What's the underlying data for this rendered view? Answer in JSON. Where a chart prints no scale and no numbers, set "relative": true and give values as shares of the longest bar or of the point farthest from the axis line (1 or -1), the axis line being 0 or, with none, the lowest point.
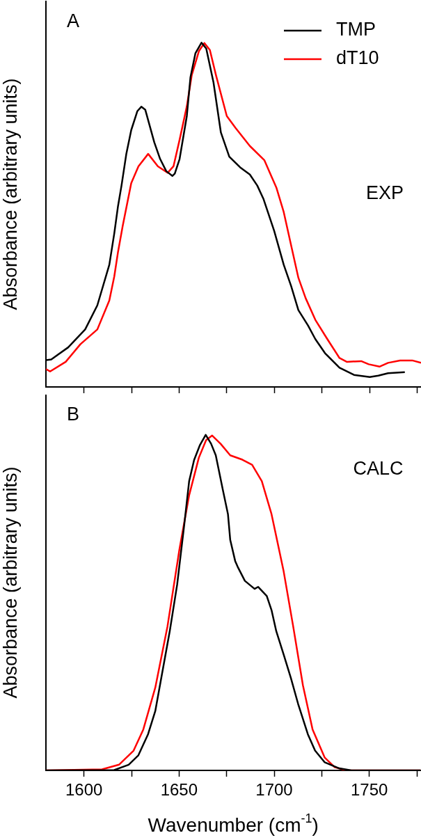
{
  "chart_data": [
    {
      "type": "line",
      "relative": true,
      "ylabel": "Absorbance (arbitrary units)",
      "xlim": [
        1580,
        1777
      ],
      "xticks": [
        1600,
        {
          "value": 1625,
          "label": null
        },
        1650,
        {
          "value": 1675,
          "label": null
        },
        1700,
        {
          "value": 1725,
          "label": null
        },
        1750,
        {
          "value": 1775,
          "label": null
        }
      ],
      "tick_labels": false,
      "legend": "top right",
      "marker": "none",
      "annotations": [
        "A",
        "EXP"
      ],
      "series": [
        {
          "name": "TMP",
          "color": "#000000",
          "x": [
            1580,
            1582.8,
            1591.7,
            1600.6,
            1607,
            1613.3,
            1615.9,
            1617.8,
            1619.7,
            1622.2,
            1624.8,
            1628,
            1630.1,
            1632.2,
            1636.9,
            1640,
            1643.2,
            1646.4,
            1647.7,
            1650.2,
            1654,
            1655.9,
            1658.5,
            1661.7,
            1664.2,
            1668,
            1671.9,
            1676.3,
            1682,
            1687.1,
            1691,
            1694.2,
            1699.9,
            1704.9,
            1708.8,
            1712.6,
            1717.7,
            1721.5,
            1726.6,
            1734.2,
            1741.8,
            1750.1,
            1754.6,
            1759.7,
            1768.5
          ],
          "values": [
            0.078,
            0.08,
            0.115,
            0.167,
            0.237,
            0.355,
            0.446,
            0.523,
            0.585,
            0.676,
            0.746,
            0.801,
            0.814,
            0.805,
            0.711,
            0.662,
            0.627,
            0.613,
            0.62,
            0.662,
            0.787,
            0.899,
            0.969,
            1,
            0.983,
            0.885,
            0.739,
            0.669,
            0.638,
            0.617,
            0.585,
            0.547,
            0.453,
            0.355,
            0.293,
            0.223,
            0.178,
            0.139,
            0.098,
            0.056,
            0.035,
            0.029,
            0.033,
            0.04,
            0.043
          ]
        },
        {
          "name": "dT10",
          "color": "#ff0000",
          "x": [
            1580,
            1582.2,
            1590.4,
            1598.1,
            1607,
            1613.3,
            1615.9,
            1617.8,
            1620.3,
            1624.8,
            1628.6,
            1633.7,
            1638.8,
            1643.9,
            1647,
            1650.2,
            1654,
            1656.6,
            1660.4,
            1663.2,
            1666.1,
            1669.3,
            1675,
            1679.5,
            1687.1,
            1694.7,
            1701.1,
            1704.9,
            1708.8,
            1712.6,
            1716.4,
            1721.5,
            1727.8,
            1734.2,
            1738,
            1745.6,
            1749.5,
            1755.2,
            1759.7,
            1766,
            1772.4,
            1777
          ],
          "values": [
            0.052,
            0.045,
            0.073,
            0.124,
            0.167,
            0.251,
            0.321,
            0.39,
            0.467,
            0.592,
            0.641,
            0.677,
            0.641,
            0.622,
            0.641,
            0.718,
            0.815,
            0.906,
            0.976,
            0.999,
            0.979,
            0.906,
            0.787,
            0.753,
            0.7,
            0.659,
            0.578,
            0.508,
            0.411,
            0.317,
            0.258,
            0.195,
            0.139,
            0.084,
            0.073,
            0.075,
            0.066,
            0.059,
            0.07,
            0.077,
            0.077,
            0.07
          ]
        }
      ]
    },
    {
      "type": "line",
      "relative": true,
      "ylabel": "Absorbance (arbitrary units)",
      "xlabel": "Wavenumber (cm$^{-1}$)",
      "xlim": [
        1580,
        1777
      ],
      "xticks": [
        1600,
        {
          "value": 1625,
          "label": null
        },
        1650,
        {
          "value": 1675,
          "label": null
        },
        1700,
        {
          "value": 1725,
          "label": null
        },
        1750,
        {
          "value": 1775,
          "label": null
        }
      ],
      "tick_labels": "x",
      "marker": "none",
      "annotations": [
        "B",
        "CALC"
      ],
      "series": [
        {
          "color": "#000000",
          "x": [
            1580,
            1615.9,
            1623.5,
            1628.6,
            1633.7,
            1637.5,
            1641.3,
            1645.1,
            1649,
            1652.8,
            1655.3,
            1657.9,
            1661,
            1664,
            1666.8,
            1669.3,
            1673.1,
            1675.7,
            1676.9,
            1679.5,
            1680.8,
            1684.6,
            1689.7,
            1691.6,
            1696.1,
            1698.6,
            1701.1,
            1705,
            1708.8,
            1712.6,
            1717.7,
            1721.5,
            1726.6,
            1734.2,
            1740.6,
            1777
          ],
          "values": [
            0,
            0.001,
            0.017,
            0.045,
            0.108,
            0.177,
            0.296,
            0.415,
            0.554,
            0.736,
            0.862,
            0.925,
            0.97,
            1,
            0.974,
            0.939,
            0.834,
            0.764,
            0.687,
            0.624,
            0.607,
            0.565,
            0.541,
            0.547,
            0.52,
            0.478,
            0.415,
            0.345,
            0.275,
            0.198,
            0.108,
            0.059,
            0.024,
            0.006,
            0,
            0
          ]
        },
        {
          "color": "#ff0000",
          "x": [
            1580,
            1609.5,
            1618.4,
            1626.1,
            1631.2,
            1637.5,
            1643.9,
            1650.2,
            1655.3,
            1660.4,
            1664.2,
            1667.4,
            1671.9,
            1676.9,
            1683.3,
            1688.4,
            1693.5,
            1698.6,
            1704.9,
            1710,
            1715.1,
            1720.2,
            1726.6,
            1731.7,
            1738,
            1777
          ],
          "values": [
            0,
            0.003,
            0.017,
            0.059,
            0.122,
            0.247,
            0.429,
            0.659,
            0.82,
            0.932,
            0.984,
            0.998,
            0.973,
            0.939,
            0.926,
            0.911,
            0.862,
            0.764,
            0.596,
            0.429,
            0.254,
            0.122,
            0.038,
            0.01,
            0,
            0
          ]
        }
      ]
    }
  ]
}
